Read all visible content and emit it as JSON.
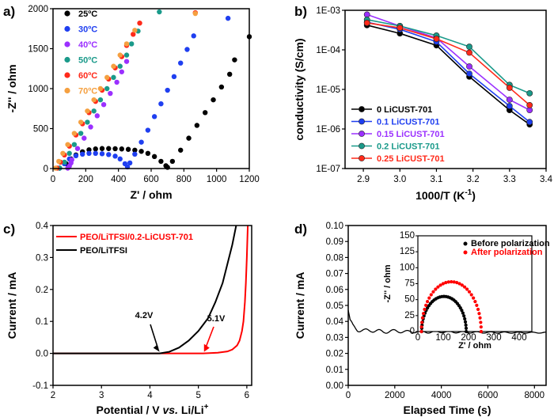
{
  "chart_data": [
    {
      "panel": "a)",
      "type": "scatter",
      "xlabel": "Z' / ohm",
      "ylabel": "-Z'' / ohm",
      "xlim": [
        0,
        1200
      ],
      "ylim": [
        0,
        2000
      ],
      "xticks": [
        0,
        200,
        400,
        600,
        800,
        1000,
        1200
      ],
      "yticks": [
        0,
        500,
        1000,
        1500,
        2000
      ],
      "legend": "top-left",
      "series": [
        {
          "name": "25ºC",
          "color": "#000000",
          "points": [
            [
              40,
              5
            ],
            [
              80,
              60
            ],
            [
              110,
              120
            ],
            [
              140,
              170
            ],
            [
              180,
              210
            ],
            [
              220,
              235
            ],
            [
              260,
              245
            ],
            [
              300,
              250
            ],
            [
              340,
              250
            ],
            [
              380,
              248
            ],
            [
              420,
              245
            ],
            [
              460,
              240
            ],
            [
              500,
              230
            ],
            [
              540,
              215
            ],
            [
              580,
              190
            ],
            [
              620,
              150
            ],
            [
              660,
              90
            ],
            [
              690,
              35
            ],
            [
              700,
              15
            ],
            [
              730,
              90
            ],
            [
              780,
              230
            ],
            [
              830,
              380
            ],
            [
              880,
              540
            ],
            [
              930,
              700
            ],
            [
              980,
              860
            ],
            [
              1030,
              1020
            ],
            [
              1080,
              1180
            ],
            [
              1110,
              1360
            ],
            [
              1200,
              1650
            ]
          ]
        },
        {
          "name": "30ºC",
          "color": "#1f3ff0",
          "points": [
            [
              40,
              5
            ],
            [
              70,
              60
            ],
            [
              100,
              120
            ],
            [
              140,
              160
            ],
            [
              180,
              180
            ],
            [
              220,
              190
            ],
            [
              260,
              190
            ],
            [
              300,
              185
            ],
            [
              340,
              175
            ],
            [
              380,
              155
            ],
            [
              410,
              120
            ],
            [
              440,
              60
            ],
            [
              455,
              20
            ],
            [
              470,
              70
            ],
            [
              500,
              180
            ],
            [
              540,
              330
            ],
            [
              580,
              480
            ],
            [
              620,
              650
            ],
            [
              660,
              810
            ],
            [
              700,
              980
            ],
            [
              740,
              1150
            ],
            [
              780,
              1320
            ],
            [
              820,
              1490
            ],
            [
              860,
              1660
            ],
            [
              1070,
              1880
            ]
          ]
        },
        {
          "name": "40ºC",
          "color": "#9b30ff",
          "points": [
            [
              90,
              5
            ],
            [
              100,
              30
            ],
            [
              110,
              70
            ],
            [
              115,
              110
            ],
            [
              150,
              250
            ],
            [
              190,
              380
            ],
            [
              230,
              520
            ],
            [
              270,
              660
            ],
            [
              310,
              800
            ],
            [
              350,
              940
            ],
            [
              390,
              1080
            ],
            [
              420,
              1210
            ],
            [
              450,
              1340
            ]
          ]
        },
        {
          "name": "50ºC",
          "color": "#1a9a8a",
          "points": [
            [
              40,
              5
            ],
            [
              70,
              80
            ],
            [
              100,
              190
            ],
            [
              130,
              300
            ],
            [
              170,
              440
            ],
            [
              210,
              580
            ],
            [
              250,
              720
            ],
            [
              290,
              860
            ],
            [
              330,
              1000
            ],
            [
              370,
              1140
            ],
            [
              410,
              1280
            ],
            [
              450,
              1420
            ],
            [
              480,
              1560
            ],
            [
              520,
              1720
            ],
            [
              650,
              1960
            ]
          ]
        },
        {
          "name": "60ºC",
          "color": "#ff2a1a",
          "points": [
            [
              25,
              5
            ],
            [
              45,
              80
            ],
            [
              70,
              170
            ],
            [
              100,
              280
            ],
            [
              140,
              420
            ],
            [
              180,
              560
            ],
            [
              220,
              700
            ],
            [
              260,
              840
            ],
            [
              300,
              980
            ],
            [
              340,
              1120
            ],
            [
              380,
              1260
            ],
            [
              420,
              1400
            ],
            [
              450,
              1540
            ],
            [
              490,
              1680
            ],
            [
              530,
              1820
            ],
            [
              870,
              1950
            ]
          ]
        },
        {
          "name": "70ºC",
          "color": "#f5a040",
          "points": [
            [
              15,
              5
            ],
            [
              35,
              90
            ],
            [
              60,
              190
            ],
            [
              90,
              300
            ],
            [
              130,
              440
            ],
            [
              170,
              580
            ],
            [
              210,
              720
            ],
            [
              250,
              860
            ],
            [
              290,
              1000
            ],
            [
              330,
              1140
            ],
            [
              370,
              1280
            ],
            [
              410,
              1420
            ],
            [
              450,
              1560
            ],
            [
              500,
              1730
            ],
            [
              870,
              1940
            ]
          ]
        }
      ]
    },
    {
      "panel": "b)",
      "type": "line",
      "xlabel": "1000/T (K-1)",
      "xlabel_main": "1000/T  (K",
      "xlabel_sup": "-1",
      "xlabel_close": ")",
      "ylabel": "conductivity (S/cm)",
      "xlim": [
        2.85,
        3.4
      ],
      "ylim": [
        1e-07,
        0.001
      ],
      "yscale": "log",
      "xticks": [
        2.9,
        3.0,
        3.1,
        3.2,
        3.3,
        3.4
      ],
      "yticks": [
        "1E-07",
        "1E-06",
        "1E-05",
        "1E-04",
        "1E-03"
      ],
      "legend": "bottom-left",
      "x": [
        2.91,
        3.0,
        3.1,
        3.19,
        3.3,
        3.355
      ],
      "series": [
        {
          "name": "0 LiCUST-701",
          "color": "#000000",
          "values": [
            0.00042,
            0.00026,
            0.00013,
            2.1e-05,
            3e-06,
            1.3e-06
          ]
        },
        {
          "name": "0.1 LiCUST-701",
          "color": "#1f3ff0",
          "values": [
            0.0005,
            0.00033,
            0.00016,
            2.5e-05,
            3.8e-06,
            1.5e-06
          ]
        },
        {
          "name": "0.15 LiCUST-701",
          "color": "#9b30ff",
          "values": [
            0.00078,
            0.0004,
            0.0002,
            3.8e-05,
            5.5e-06,
            3e-06
          ]
        },
        {
          "name": "0.2 LiCUST-701",
          "color": "#1a9a8a",
          "values": [
            0.00058,
            0.0004,
            0.00023,
            0.00012,
            1.3e-05,
            8e-06
          ]
        },
        {
          "name": "0.25 LiCUST-701",
          "color": "#ff2a1a",
          "values": [
            0.00048,
            0.00036,
            0.00019,
            8.5e-05,
            1.1e-05,
            4e-06
          ]
        }
      ]
    },
    {
      "panel": "c)",
      "type": "line",
      "xlabel": "Potential / V vs. Li/Li+",
      "xlabel_pre": "Potential / V ",
      "xlabel_em": "vs.",
      "xlabel_post": " Li/Li",
      "xlabel_sup": "+",
      "ylabel": "Current / mA",
      "xlim": [
        2,
        6.1
      ],
      "ylim": [
        -0.1,
        0.4
      ],
      "xticks": [
        2,
        3,
        4,
        5,
        6
      ],
      "yticks": [
        -0.1,
        0.0,
        0.1,
        0.2,
        0.3,
        0.4
      ],
      "legend": "top-left",
      "series": [
        {
          "name": "PEO/LiTFSI/0.2-LiCUST-701",
          "color": "#ff0000",
          "points": [
            [
              2,
              0
            ],
            [
              5.1,
              0
            ],
            [
              5.4,
              0.002
            ],
            [
              5.6,
              0.006
            ],
            [
              5.7,
              0.012
            ],
            [
              5.8,
              0.025
            ],
            [
              5.85,
              0.04
            ],
            [
              5.9,
              0.07
            ],
            [
              5.93,
              0.1
            ],
            [
              5.96,
              0.16
            ],
            [
              5.98,
              0.22
            ],
            [
              6.0,
              0.3
            ],
            [
              6.02,
              0.4
            ]
          ]
        },
        {
          "name": "PEO/LiTFSI",
          "color": "#000000",
          "points": [
            [
              2,
              0
            ],
            [
              4.2,
              0
            ],
            [
              4.4,
              0.005
            ],
            [
              4.6,
              0.018
            ],
            [
              4.8,
              0.04
            ],
            [
              5.0,
              0.07
            ],
            [
              5.2,
              0.11
            ],
            [
              5.35,
              0.16
            ],
            [
              5.5,
              0.22
            ],
            [
              5.6,
              0.28
            ],
            [
              5.7,
              0.34
            ],
            [
              5.78,
              0.4
            ]
          ]
        }
      ],
      "annotations": [
        "4.2V",
        "5.1V"
      ]
    },
    {
      "panel": "d)",
      "type": "line",
      "xlabel": "Elapsed Time (s)",
      "ylabel": "Current / mA",
      "xlim": [
        0,
        8500
      ],
      "ylim": [
        0.0,
        0.1
      ],
      "xticks": [
        0,
        2000,
        4000,
        6000,
        8000
      ],
      "yticks": [
        "0.00",
        "0.01",
        "0.02",
        "0.03",
        "0.04",
        "0.05",
        "0.06",
        "0.07",
        "0.08",
        "0.09",
        "0.10"
      ],
      "series": [
        {
          "name": "current",
          "color": "#000000",
          "points": [
            [
              0,
              0.047
            ],
            [
              80,
              0.04
            ],
            [
              200,
              0.037
            ],
            [
              400,
              0.035
            ],
            [
              700,
              0.034
            ],
            [
              1000,
              0.0345
            ],
            [
              1500,
              0.0335
            ],
            [
              2000,
              0.034
            ],
            [
              2500,
              0.0335
            ],
            [
              3000,
              0.0337
            ],
            [
              3500,
              0.0333
            ],
            [
              4000,
              0.0335
            ],
            [
              5000,
              0.0332
            ],
            [
              6000,
              0.0331
            ],
            [
              7000,
              0.033
            ],
            [
              8000,
              0.033
            ],
            [
              8500,
              0.033
            ]
          ]
        }
      ],
      "inset": {
        "type": "scatter",
        "xlabel": "Z' / ohm",
        "ylabel": "-Z'' / ohm",
        "xlim": [
          0,
          450
        ],
        "ylim": [
          0,
          150
        ],
        "xticks": [
          0,
          100,
          200,
          300,
          400
        ],
        "yticks": [
          0,
          25,
          50,
          75,
          100,
          125,
          150
        ],
        "legend": "top-right",
        "series": [
          {
            "name": "Before polarization",
            "color": "#000000",
            "center": 103,
            "radius": 88,
            "peak": 55
          },
          {
            "name": "After polarization",
            "color": "#ff0000",
            "center": 132,
            "radius": 118,
            "peak": 78
          }
        ]
      }
    }
  ]
}
